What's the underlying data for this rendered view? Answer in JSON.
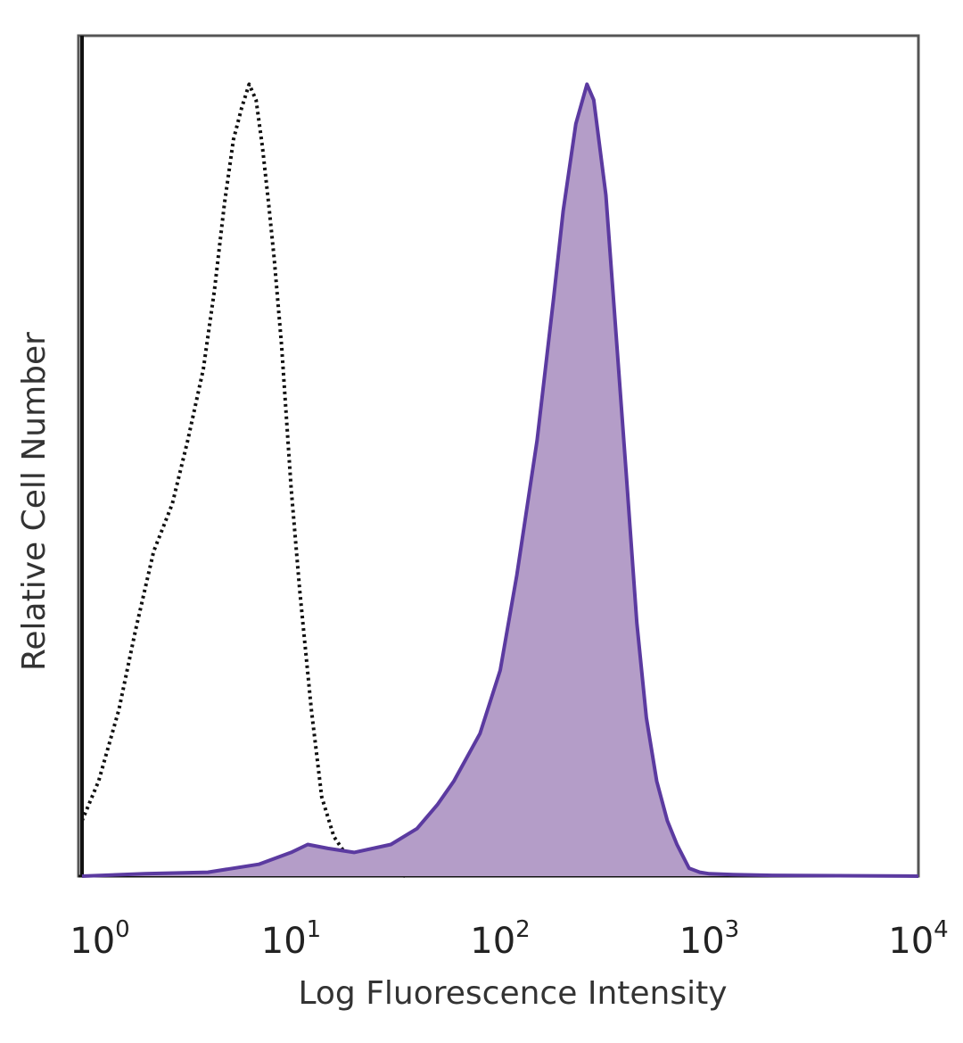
{
  "chart_data": {
    "type": "area",
    "title": "",
    "xlabel": "Log Fluorescence Intensity",
    "ylabel": "Relative Cell Number",
    "x_scale": "log",
    "xlim": [
      1,
      10000
    ],
    "ylim": [
      0,
      1.05
    ],
    "grid": false,
    "legend": "none",
    "x_ticks": [
      {
        "value": 1,
        "base": "10",
        "exp": "0"
      },
      {
        "value": 10,
        "base": "10",
        "exp": "1"
      },
      {
        "value": 100,
        "base": "10",
        "exp": "2"
      },
      {
        "value": 1000,
        "base": "10",
        "exp": "3"
      },
      {
        "value": 10000,
        "base": "10",
        "exp": "4"
      }
    ],
    "series": [
      {
        "style": "dotted-outline",
        "color": "#111111",
        "x": [
          1,
          1.2,
          1.5,
          1.8,
          2.2,
          2.7,
          3.2,
          3.8,
          4.3,
          4.8,
          5.3,
          5.8,
          6.3,
          6.8,
          7.3,
          7.8,
          8.3,
          9,
          10,
          11,
          12.5,
          14,
          16,
          18,
          21,
          25,
          30,
          35
        ],
        "y": [
          0.07,
          0.12,
          0.21,
          0.31,
          0.41,
          0.47,
          0.55,
          0.64,
          0.74,
          0.85,
          0.93,
          0.97,
          1.0,
          0.98,
          0.92,
          0.85,
          0.78,
          0.67,
          0.49,
          0.36,
          0.21,
          0.1,
          0.05,
          0.03,
          0.02,
          0.01,
          0.005,
          0
        ]
      },
      {
        "style": "filled",
        "color": "#5b3aa0",
        "fill": "#b49dc8",
        "x": [
          1,
          2,
          4,
          7,
          10,
          12,
          15,
          20,
          30,
          40,
          50,
          60,
          80,
          100,
          120,
          150,
          180,
          200,
          230,
          260,
          280,
          320,
          350,
          400,
          450,
          500,
          560,
          630,
          700,
          800,
          900,
          1000,
          1300,
          2000,
          10000
        ],
        "y": [
          0,
          0.003,
          0.005,
          0.015,
          0.03,
          0.04,
          0.035,
          0.03,
          0.04,
          0.06,
          0.09,
          0.12,
          0.18,
          0.26,
          0.38,
          0.55,
          0.73,
          0.84,
          0.95,
          1.0,
          0.98,
          0.86,
          0.72,
          0.51,
          0.32,
          0.2,
          0.12,
          0.07,
          0.04,
          0.01,
          0.005,
          0.003,
          0.002,
          0.001,
          0
        ]
      }
    ]
  }
}
